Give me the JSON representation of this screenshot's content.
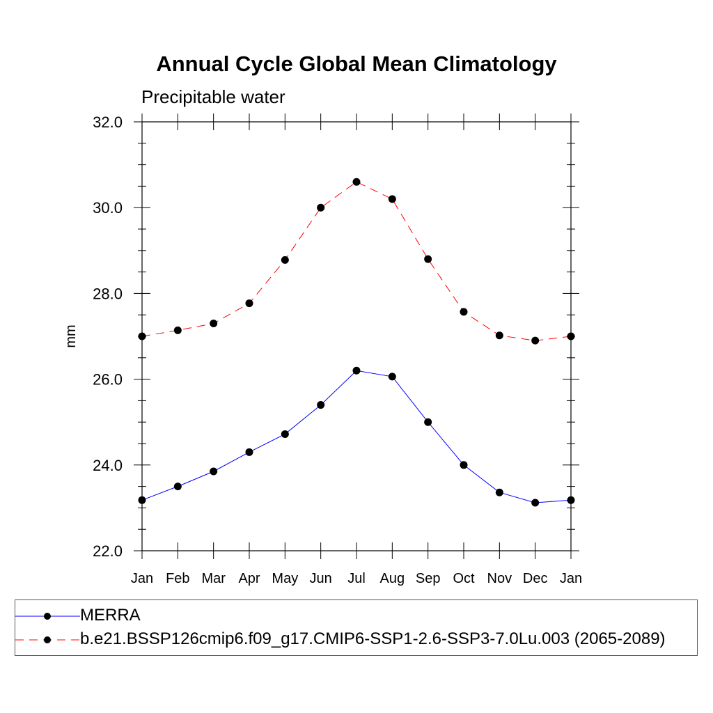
{
  "chart_data": {
    "type": "line",
    "title": "Annual Cycle Global Mean Climatology",
    "subtitle": "Precipitable water",
    "xlabel": "",
    "ylabel": "mm",
    "categories": [
      "Jan",
      "Feb",
      "Mar",
      "Apr",
      "May",
      "Jun",
      "Jul",
      "Aug",
      "Sep",
      "Oct",
      "Nov",
      "Dec",
      "Jan"
    ],
    "ylim": [
      22.0,
      32.0
    ],
    "yticks": [
      "22.0",
      "24.0",
      "26.0",
      "28.0",
      "30.0",
      "32.0"
    ],
    "grid": false,
    "legend_position": "bottom",
    "series": [
      {
        "name": "MERRA",
        "color": "#0000ff",
        "line_style": "solid",
        "marker": "filled-circle",
        "values": [
          23.18,
          23.5,
          23.85,
          24.3,
          24.72,
          25.4,
          26.2,
          26.06,
          25.0,
          24.0,
          23.36,
          23.12,
          23.18
        ]
      },
      {
        "name": "b.e21.BSSP126cmip6.f09_g17.CMIP6-SSP1-2.6-SSP3-7.0Lu.003 (2065-2089)",
        "color": "#ff0000",
        "line_style": "dashed",
        "marker": "filled-circle",
        "values": [
          27.0,
          27.14,
          27.3,
          27.77,
          28.78,
          30.0,
          30.6,
          30.2,
          28.8,
          27.57,
          27.02,
          26.9,
          27.0
        ]
      }
    ]
  }
}
